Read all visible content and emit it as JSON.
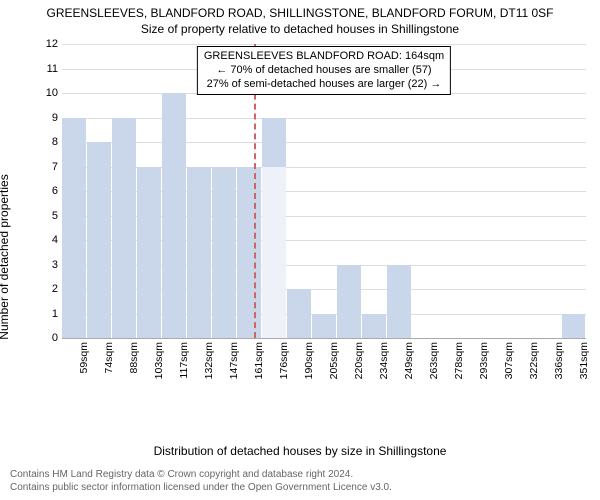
{
  "titles": {
    "line1": "GREENSLEEVES, BLANDFORD ROAD, SHILLINGSTONE, BLANDFORD FORUM, DT11 0SF",
    "line2": "Size of property relative to detached houses in Shillingstone"
  },
  "ylabel": "Number of detached properties",
  "xlabel": "Distribution of detached houses by size in Shillingstone",
  "chart": {
    "type": "histogram",
    "ylim": [
      0,
      12
    ],
    "ytick_step": 1,
    "background_color": "#ffffff",
    "grid_color": "#dddddd",
    "axis_color": "#aaaaaa",
    "bar_primary_color": "#cad6ea",
    "bar_secondary_color": "#eef2f8",
    "marker_color": "#cc6666",
    "categories": [
      "59sqm",
      "74sqm",
      "88sqm",
      "103sqm",
      "117sqm",
      "132sqm",
      "147sqm",
      "161sqm",
      "176sqm",
      "190sqm",
      "205sqm",
      "220sqm",
      "234sqm",
      "249sqm",
      "263sqm",
      "278sqm",
      "293sqm",
      "307sqm",
      "322sqm",
      "336sqm",
      "351sqm"
    ],
    "primary_values": [
      9,
      8,
      9,
      7,
      10,
      7,
      7,
      7,
      9,
      2,
      1,
      3,
      1,
      3,
      0,
      0,
      0,
      0,
      0,
      0,
      1
    ],
    "secondary_values": [
      0,
      0,
      0,
      0,
      0,
      0,
      0,
      0,
      7,
      0,
      0,
      0,
      0,
      0,
      0,
      0,
      0,
      0,
      0,
      0,
      0
    ],
    "bar_width_ratio": 0.96,
    "marker_index": 7.2,
    "label_fontsize": 12,
    "tick_fontsize": 11
  },
  "annotation": {
    "line1": "GREENSLEEVES BLANDFORD ROAD: 164sqm",
    "line2": "← 70% of detached houses are smaller (57)",
    "line3": "27% of semi-detached houses are larger (22) →",
    "border_color": "#000000",
    "bg_color": "#ffffff"
  },
  "attribution": {
    "line1": "Contains HM Land Registry data © Crown copyright and database right 2024.",
    "line2": "Contains public sector information licensed under the Open Government Licence v3.0."
  }
}
